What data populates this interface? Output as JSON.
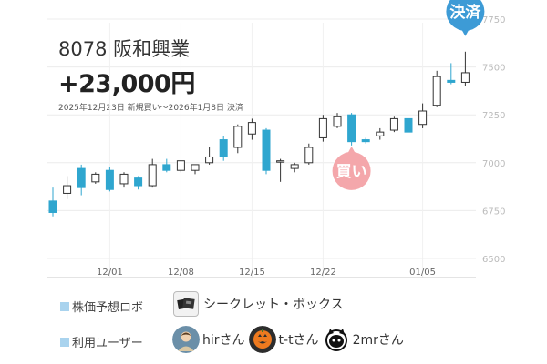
{
  "header": {
    "ticker": "8078 阪和興業",
    "profit": "+23,000円",
    "period": "2025年12月23日 新規買い〜2026年1月8日 決済"
  },
  "markers": {
    "buy": "買い",
    "settle": "決済",
    "buy_color": "#f4a7ab",
    "settle_color": "#3d9bd6"
  },
  "chart_data": {
    "type": "candlestick",
    "x_labels": [
      "12/01",
      "12/08",
      "12/15",
      "12/22",
      "01/05"
    ],
    "y_ticks": [
      "6500",
      "6750",
      "7000",
      "7250",
      "7500",
      "7750"
    ],
    "ylim": [
      6400,
      7850
    ],
    "up_color": "#ffffff",
    "down_color": "#2fa6cf",
    "candles": [
      {
        "o": 6800,
        "h": 6870,
        "l": 6720,
        "c": 6740
      },
      {
        "o": 6840,
        "h": 6930,
        "l": 6810,
        "c": 6880
      },
      {
        "o": 6970,
        "h": 6990,
        "l": 6830,
        "c": 6870
      },
      {
        "o": 6900,
        "h": 6950,
        "l": 6890,
        "c": 6940
      },
      {
        "o": 6960,
        "h": 6980,
        "l": 6850,
        "c": 6860
      },
      {
        "o": 6890,
        "h": 6950,
        "l": 6870,
        "c": 6940
      },
      {
        "o": 6920,
        "h": 6930,
        "l": 6860,
        "c": 6880
      },
      {
        "o": 6880,
        "h": 7020,
        "l": 6870,
        "c": 6990
      },
      {
        "o": 6990,
        "h": 7020,
        "l": 6950,
        "c": 6960
      },
      {
        "o": 6960,
        "h": 7010,
        "l": 6950,
        "c": 7010
      },
      {
        "o": 6960,
        "h": 6990,
        "l": 6940,
        "c": 6990
      },
      {
        "o": 7000,
        "h": 7080,
        "l": 6990,
        "c": 7030
      },
      {
        "o": 7120,
        "h": 7140,
        "l": 7010,
        "c": 7030
      },
      {
        "o": 7080,
        "h": 7200,
        "l": 7050,
        "c": 7190
      },
      {
        "o": 7150,
        "h": 7230,
        "l": 7120,
        "c": 7210
      },
      {
        "o": 7170,
        "h": 7180,
        "l": 6940,
        "c": 6960
      },
      {
        "o": 7010,
        "h": 7020,
        "l": 6900,
        "c": 7010
      },
      {
        "o": 6970,
        "h": 7000,
        "l": 6950,
        "c": 6990
      },
      {
        "o": 7000,
        "h": 7100,
        "l": 6990,
        "c": 7080
      },
      {
        "o": 7130,
        "h": 7250,
        "l": 7110,
        "c": 7230
      },
      {
        "o": 7190,
        "h": 7260,
        "l": 7180,
        "c": 7240
      },
      {
        "o": 7250,
        "h": 7260,
        "l": 7090,
        "c": 7110
      },
      {
        "o": 7120,
        "h": 7130,
        "l": 7100,
        "c": 7110
      },
      {
        "o": 7140,
        "h": 7180,
        "l": 7120,
        "c": 7160
      },
      {
        "o": 7170,
        "h": 7240,
        "l": 7160,
        "c": 7230
      },
      {
        "o": 7230,
        "h": 7230,
        "l": 7160,
        "c": 7160
      },
      {
        "o": 7200,
        "h": 7310,
        "l": 7180,
        "c": 7270
      },
      {
        "o": 7300,
        "h": 7480,
        "l": 7290,
        "c": 7450
      },
      {
        "o": 7430,
        "h": 7520,
        "l": 7410,
        "c": 7420
      },
      {
        "o": 7420,
        "h": 7580,
        "l": 7400,
        "c": 7470
      }
    ],
    "buy_index": 21,
    "settle_index": 29
  },
  "legend": {
    "robo_label": "株価予想ロボ",
    "robo_name": "シークレット・ボックス",
    "users_label": "利用ユーザー",
    "users": [
      "hirさん",
      "t-tさん",
      "2mrさん"
    ]
  }
}
